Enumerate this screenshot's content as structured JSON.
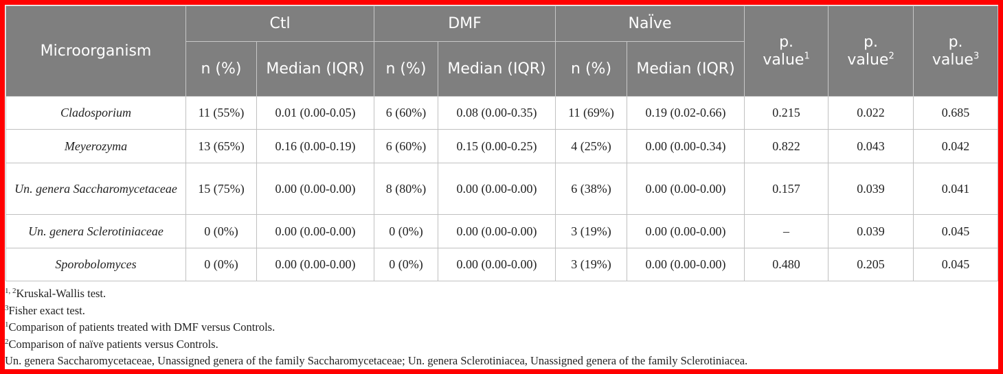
{
  "table": {
    "header": {
      "row_label": "Microorganism",
      "groups": [
        {
          "name": "Ctl",
          "columns": [
            "n (%)",
            "Median (IQR)"
          ]
        },
        {
          "name": "DMF",
          "columns": [
            "n (%)",
            "Median (IQR)"
          ]
        },
        {
          "name": "NaÏve",
          "columns": [
            "n (%)",
            "Median (IQR)"
          ]
        }
      ],
      "pvalues": [
        {
          "text": "p. value",
          "sup": "1"
        },
        {
          "text": "p. value",
          "sup": "2"
        },
        {
          "text": "p. value",
          "sup": "3"
        }
      ]
    },
    "rows": [
      [
        "Cladosporium",
        "11 (55%)",
        "0.01 (0.00-0.05)",
        "6 (60%)",
        "0.08 (0.00-0.35)",
        "11 (69%)",
        "0.19 (0.02-0.66)",
        "0.215",
        "0.022",
        "0.685"
      ],
      [
        "Meyerozyma",
        "13 (65%)",
        "0.16 (0.00-0.19)",
        "6 (60%)",
        "0.15 (0.00-0.25)",
        "4 (25%)",
        "0.00 (0.00-0.34)",
        "0.822",
        "0.043",
        "0.042"
      ],
      [
        "Un. genera Saccharomycetaceae",
        "15 (75%)",
        "0.00 (0.00-0.00)",
        "8 (80%)",
        "0.00 (0.00-0.00)",
        "6 (38%)",
        "0.00 (0.00-0.00)",
        "0.157",
        "0.039",
        "0.041"
      ],
      [
        "Un. genera Sclerotiniaceae",
        "0 (0%)",
        "0.00 (0.00-0.00)",
        "0 (0%)",
        "0.00 (0.00-0.00)",
        "3 (19%)",
        "0.00 (0.00-0.00)",
        "–",
        "0.039",
        "0.045"
      ],
      [
        "Sporobolomyces",
        "0 (0%)",
        "0.00 (0.00-0.00)",
        "0 (0%)",
        "0.00 (0.00-0.00)",
        "3 (19%)",
        "0.00 (0.00-0.00)",
        "0.480",
        "0.205",
        "0.045"
      ]
    ],
    "footnotes": [
      {
        "sup": "1, 2",
        "text": "Kruskal-Wallis test."
      },
      {
        "sup": "3",
        "text": "Fisher exact test."
      },
      {
        "sup": "1",
        "text": "Comparison of patients treated with DMF versus Controls."
      },
      {
        "sup": "2",
        "text": "Comparison of naïve patients versus Controls."
      },
      {
        "text": "Un. genera Saccharomycetaceae, Unassigned genera of the family Saccharomycetaceae; Un. genera Sclerotiniacea, Unassigned genera of the family Sclerotiniacea."
      }
    ]
  }
}
